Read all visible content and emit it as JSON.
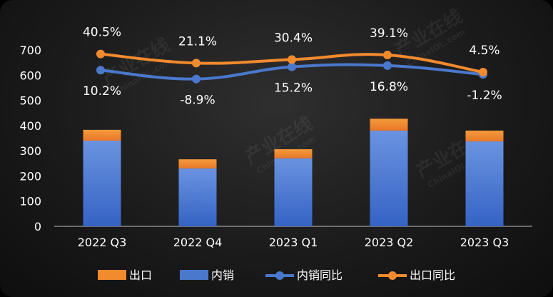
{
  "chart_data": {
    "type": "bar",
    "categories": [
      "2022 Q3",
      "2022 Q4",
      "2023 Q1",
      "2023 Q2",
      "2023 Q3"
    ],
    "ylim": [
      0,
      700
    ],
    "yticks": [
      "0",
      "100",
      "200",
      "300",
      "400",
      "500",
      "600",
      "700"
    ],
    "series": [
      {
        "name": "出口",
        "kind": "stacked-bar",
        "color": "#f28a2e",
        "values": [
          43,
          36,
          36,
          47,
          43
        ]
      },
      {
        "name": "内销",
        "kind": "stacked-bar",
        "color": "#4a78cc",
        "values": [
          340,
          230,
          270,
          380,
          337
        ]
      },
      {
        "name": "内销同比",
        "kind": "line",
        "color": "#4a78cc",
        "values": [
          620,
          585,
          633,
          638,
          603
        ],
        "labels": [
          "10.2%",
          "-8.9%",
          "15.2%",
          "16.8%",
          "-1.2%"
        ]
      },
      {
        "name": "出口同比",
        "kind": "line",
        "color": "#f28a2e",
        "values": [
          684,
          648,
          662,
          680,
          612
        ],
        "labels": [
          "40.5%",
          "21.1%",
          "30.4%",
          "39.1%",
          "4.5%"
        ]
      }
    ],
    "legend_position": "bottom",
    "grid": false
  },
  "watermark": {
    "text_cn": "产业在线",
    "text_en": "ChinaIOL.com"
  }
}
